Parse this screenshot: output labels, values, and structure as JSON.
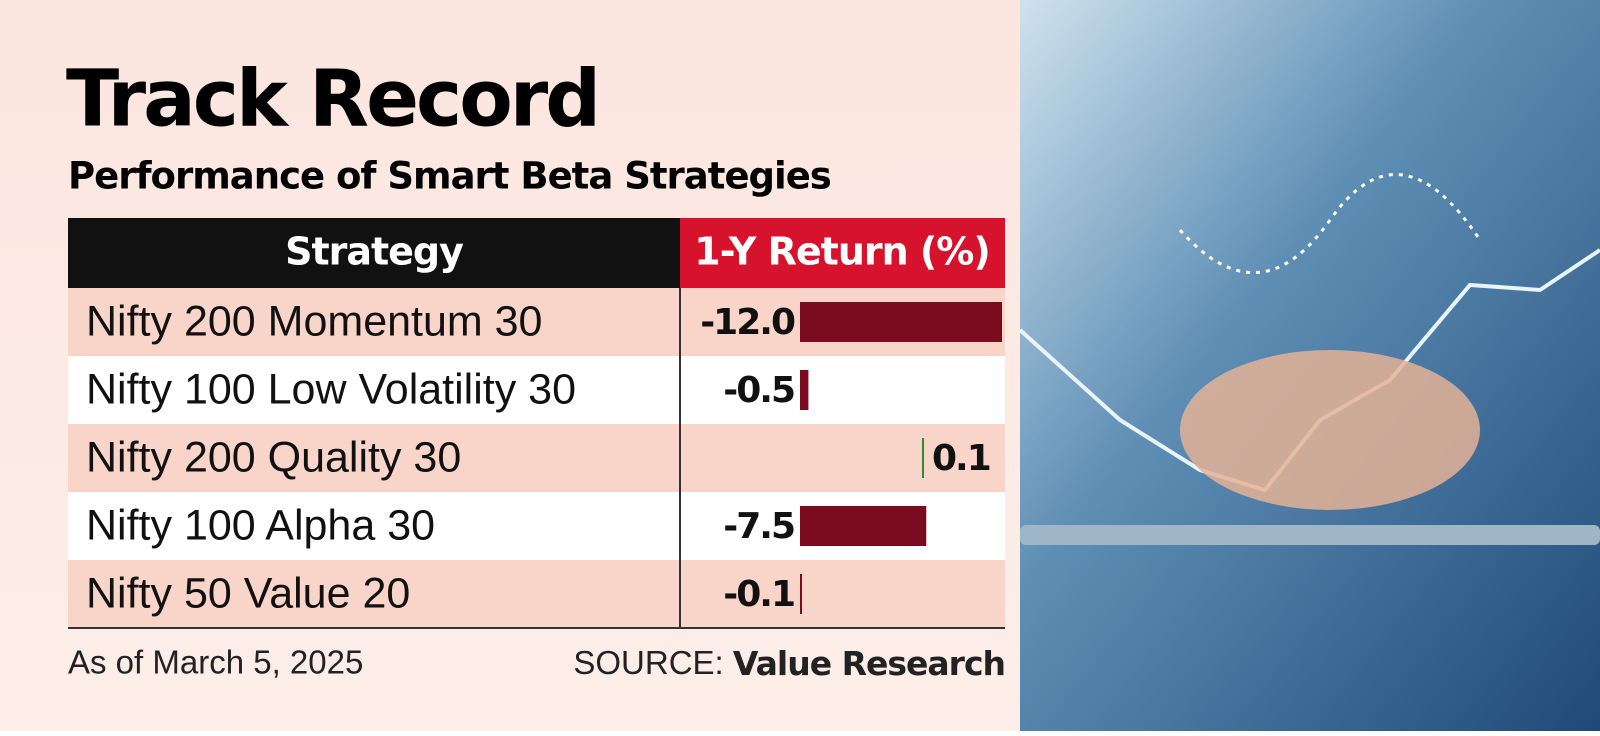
{
  "chart_data": {
    "type": "bar",
    "orientation": "horizontal",
    "title": "Track Record",
    "subtitle": "Performance of Smart Beta Strategies",
    "headers": [
      "Strategy",
      "1-Y Return (%)"
    ],
    "categories": [
      "Nifty 200 Momentum 30",
      "Nifty 100 Low Volatility 30",
      "Nifty 200 Quality 30",
      "Nifty 100 Alpha 30",
      "Nifty 50 Value 20"
    ],
    "values": [
      -12,
      -0.5,
      0.1,
      -7.5,
      -0.1
    ],
    "value_labels": [
      "-12.0",
      "-0.5",
      "0.1",
      "-7.5",
      "-0.1"
    ],
    "colors": {
      "negative": "#7a0a1e",
      "positive": "#2e8b3a"
    },
    "note": "As of March 5, 2025",
    "source_prefix": "SOURCE:",
    "source": "Value Research"
  }
}
